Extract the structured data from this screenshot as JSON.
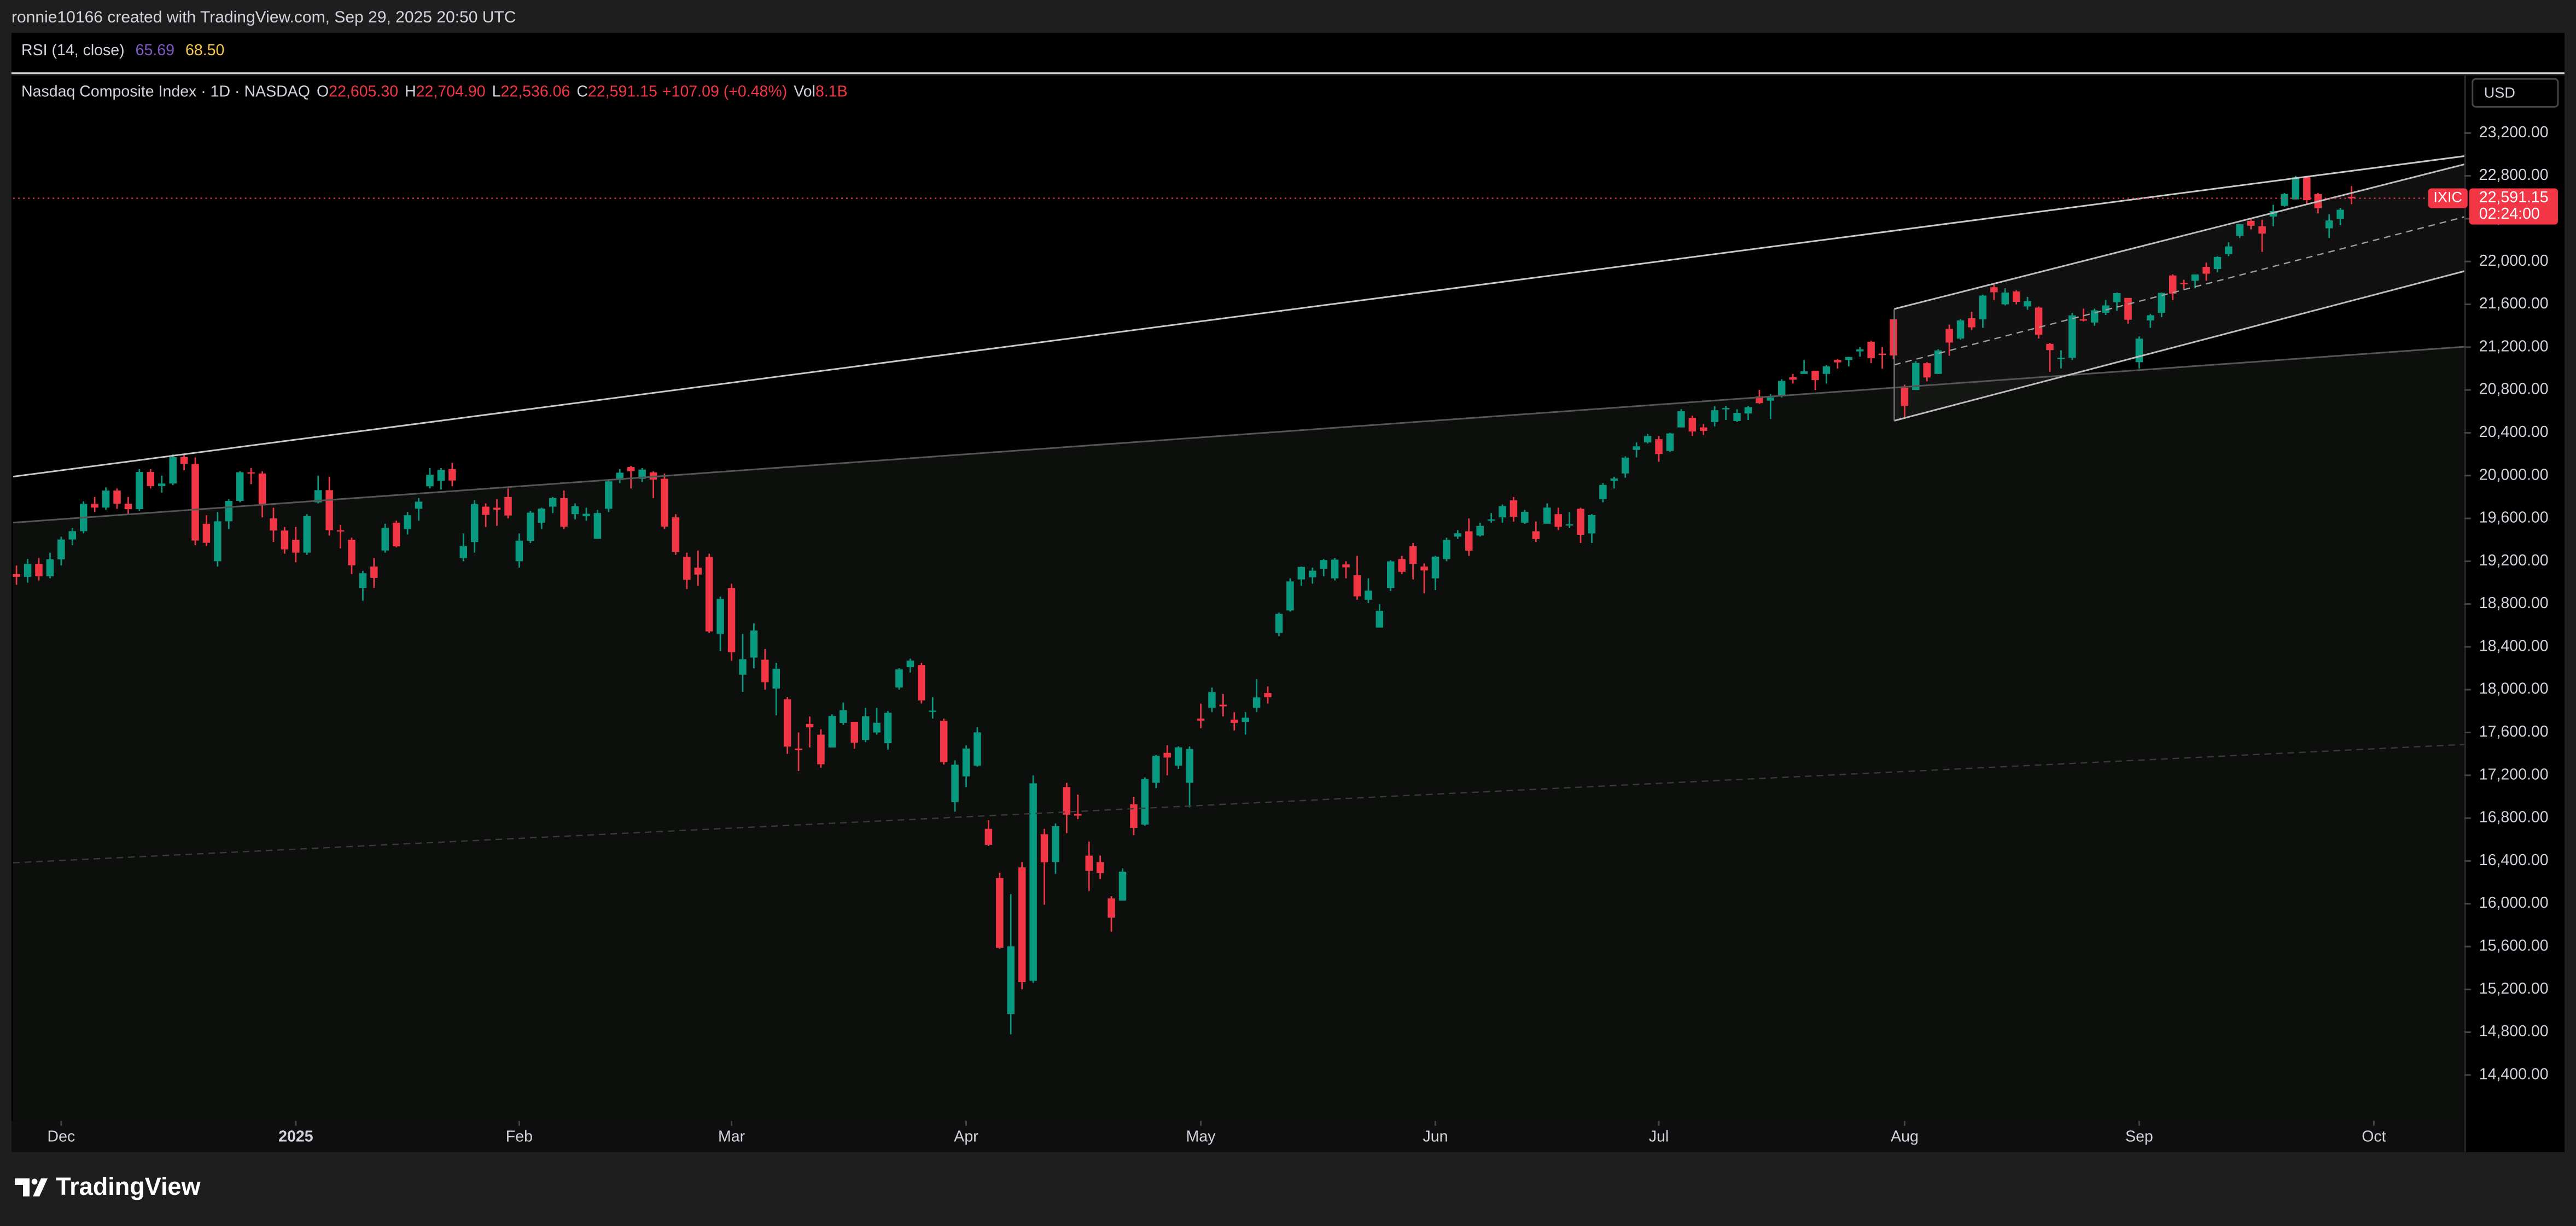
{
  "header": {
    "text": "ronnie10166 created with TradingView.com, Sep 29, 2025 20:50 UTC"
  },
  "rsi": {
    "title": "RSI (14, close)",
    "labels": [
      "65.69",
      "68.50"
    ]
  },
  "footer": {
    "brand": "TradingView"
  },
  "chart_data": {
    "type": "candlestick",
    "legend": {
      "title": "Nasdaq Composite Index · 1D · NASDAQ",
      "fields": [
        {
          "key": "O",
          "label": "22,605.30"
        },
        {
          "key": "H",
          "label": "22,704.90"
        },
        {
          "key": "L",
          "label": "22,536.06"
        },
        {
          "key": "C",
          "label": "22,591.15"
        }
      ],
      "change": "+107.09 (+0.48%)",
      "volume_key": "Vol",
      "volume": "8.1B"
    },
    "currency": "USD",
    "symbol": "IXIC",
    "last_price": {
      "value": 22591.15,
      "label": "22,591.15"
    },
    "countdown": "02:24:00",
    "up_color": "#089981",
    "down_color": "#f23645",
    "xlim": [
      -0.3,
      218.8
    ],
    "ylim": [
      13972,
      23737
    ],
    "xticks": [
      {
        "value": 4,
        "label": "Dec"
      },
      {
        "value": 25,
        "label": "2025"
      },
      {
        "value": 45,
        "label": "Feb"
      },
      {
        "value": 64,
        "label": "Mar"
      },
      {
        "value": 85,
        "label": "Apr"
      },
      {
        "value": 106,
        "label": "May"
      },
      {
        "value": 127,
        "label": "Jun"
      },
      {
        "value": 147,
        "label": "Jul"
      },
      {
        "value": 169,
        "label": "Aug"
      },
      {
        "value": 190,
        "label": "Sep"
      },
      {
        "value": 211,
        "label": "Oct"
      }
    ],
    "yticks": [
      {
        "value": 14400,
        "label": "14,400.00"
      },
      {
        "value": 14800,
        "label": "14,800.00"
      },
      {
        "value": 15200,
        "label": "15,200.00"
      },
      {
        "value": 15600,
        "label": "15,600.00"
      },
      {
        "value": 16000,
        "label": "16,000.00"
      },
      {
        "value": 16400,
        "label": "16,400.00"
      },
      {
        "value": 16800,
        "label": "16,800.00"
      },
      {
        "value": 17200,
        "label": "17,200.00"
      },
      {
        "value": 17600,
        "label": "17,600.00"
      },
      {
        "value": 18000,
        "label": "18,000.00"
      },
      {
        "value": 18400,
        "label": "18,400.00"
      },
      {
        "value": 18800,
        "label": "18,800.00"
      },
      {
        "value": 19200,
        "label": "19,200.00"
      },
      {
        "value": 19600,
        "label": "19,600.00"
      },
      {
        "value": 20000,
        "label": "20,000.00"
      },
      {
        "value": 20400,
        "label": "20,400.00"
      },
      {
        "value": 20800,
        "label": "20,800.00"
      },
      {
        "value": 21200,
        "label": "21,200.00"
      },
      {
        "value": 21600,
        "label": "21,600.00"
      },
      {
        "value": 22000,
        "label": "22,000.00"
      },
      {
        "value": 22400,
        "label": "22,400.00"
      },
      {
        "value": 22800,
        "label": "22,800.00"
      },
      {
        "value": 23200,
        "label": "23,200.00"
      }
    ],
    "candles": [
      [
        19080,
        19160,
        18980,
        19054
      ],
      [
        19054,
        19220,
        19000,
        19175
      ],
      [
        19175,
        19230,
        19020,
        19060
      ],
      [
        19060,
        19280,
        19040,
        19218
      ],
      [
        19218,
        19430,
        19160,
        19403
      ],
      [
        19403,
        19510,
        19350,
        19481
      ],
      [
        19481,
        19760,
        19460,
        19735
      ],
      [
        19735,
        19800,
        19660,
        19701
      ],
      [
        19701,
        19890,
        19680,
        19860
      ],
      [
        19860,
        19880,
        19690,
        19737
      ],
      [
        19737,
        19800,
        19640,
        19687
      ],
      [
        19687,
        20060,
        19670,
        20034
      ],
      [
        20034,
        20060,
        19880,
        19902
      ],
      [
        19902,
        20000,
        19840,
        19926
      ],
      [
        19926,
        20200,
        19910,
        20173
      ],
      [
        20173,
        20200,
        20050,
        20109
      ],
      [
        20109,
        20170,
        19350,
        19393
      ],
      [
        19550,
        19630,
        19340,
        19372
      ],
      [
        19200,
        19660,
        19150,
        19573
      ],
      [
        19573,
        19780,
        19500,
        19764
      ],
      [
        19764,
        20040,
        19750,
        20031
      ],
      [
        20031,
        20070,
        19920,
        20020
      ],
      [
        20020,
        20040,
        19610,
        19722
      ],
      [
        19600,
        19700,
        19380,
        19487
      ],
      [
        19487,
        19520,
        19270,
        19311
      ],
      [
        19400,
        19520,
        19190,
        19280
      ],
      [
        19280,
        19640,
        19260,
        19622
      ],
      [
        19750,
        20000,
        19740,
        19864
      ],
      [
        19864,
        19990,
        19440,
        19490
      ],
      [
        19490,
        19540,
        19320,
        19479
      ],
      [
        19400,
        19420,
        19080,
        19162
      ],
      [
        18950,
        19110,
        18830,
        19088
      ],
      [
        19150,
        19230,
        18950,
        19044
      ],
      [
        19300,
        19550,
        19280,
        19511
      ],
      [
        19560,
        19580,
        19330,
        19339
      ],
      [
        19500,
        19660,
        19450,
        19630
      ],
      [
        19690,
        19790,
        19580,
        19757
      ],
      [
        19900,
        20070,
        19880,
        20009
      ],
      [
        19950,
        20070,
        19870,
        20053
      ],
      [
        20060,
        20120,
        19900,
        19954
      ],
      [
        19230,
        19460,
        19200,
        19342
      ],
      [
        19380,
        19770,
        19280,
        19734
      ],
      [
        19710,
        19740,
        19520,
        19633
      ],
      [
        19700,
        19780,
        19530,
        19681
      ],
      [
        19800,
        19880,
        19600,
        19627
      ],
      [
        19200,
        19460,
        19140,
        19392
      ],
      [
        19390,
        19670,
        19370,
        19654
      ],
      [
        19560,
        19700,
        19500,
        19692
      ],
      [
        19710,
        19800,
        19650,
        19791
      ],
      [
        19790,
        19860,
        19500,
        19523
      ],
      [
        19640,
        19740,
        19590,
        19714
      ],
      [
        19620,
        19700,
        19580,
        19643
      ],
      [
        19410,
        19680,
        19410,
        19650
      ],
      [
        19690,
        19960,
        19660,
        19946
      ],
      [
        19960,
        20060,
        19930,
        20027
      ],
      [
        20080,
        20090,
        19880,
        20041
      ],
      [
        19970,
        20070,
        19940,
        20056
      ],
      [
        20030,
        20040,
        19790,
        19962
      ],
      [
        19970,
        20020,
        19500,
        19524
      ],
      [
        19610,
        19640,
        19260,
        19287
      ],
      [
        19240,
        19280,
        18940,
        19026
      ],
      [
        19140,
        19300,
        18970,
        19075
      ],
      [
        19240,
        19270,
        18530,
        18544
      ],
      [
        18520,
        18870,
        18360,
        18847
      ],
      [
        18950,
        18990,
        18270,
        18350
      ],
      [
        18140,
        18520,
        17980,
        18285
      ],
      [
        18300,
        18620,
        18200,
        18553
      ],
      [
        18280,
        18380,
        18000,
        18070
      ],
      [
        18010,
        18250,
        17760,
        18196
      ],
      [
        17910,
        17930,
        17400,
        17468
      ],
      [
        17450,
        17600,
        17240,
        17436
      ],
      [
        17680,
        17750,
        17460,
        17648
      ],
      [
        17580,
        17630,
        17270,
        17303
      ],
      [
        17460,
        17770,
        17460,
        17754
      ],
      [
        17690,
        17880,
        17670,
        17809
      ],
      [
        17700,
        17700,
        17450,
        17504
      ],
      [
        17530,
        17830,
        17510,
        17751
      ],
      [
        17600,
        17830,
        17580,
        17691
      ],
      [
        17500,
        17800,
        17440,
        17784
      ],
      [
        18020,
        18200,
        18000,
        18189
      ],
      [
        18210,
        18290,
        18160,
        18272
      ],
      [
        18230,
        18250,
        17870,
        17900
      ],
      [
        17800,
        17930,
        17730,
        17805
      ],
      [
        17710,
        17730,
        17300,
        17323
      ],
      [
        16950,
        17340,
        16860,
        17299
      ],
      [
        17190,
        17480,
        17090,
        17450
      ],
      [
        17290,
        17650,
        17280,
        17601
      ],
      [
        16700,
        16780,
        16540,
        16551
      ],
      [
        16240,
        16290,
        15580,
        15588
      ],
      [
        14970,
        16090,
        14780,
        15603
      ],
      [
        16340,
        16390,
        15200,
        15268
      ],
      [
        15280,
        17200,
        15260,
        17125
      ],
      [
        16650,
        16700,
        15990,
        16387
      ],
      [
        16390,
        16750,
        16280,
        16724
      ],
      [
        17090,
        17130,
        16660,
        16832
      ],
      [
        16840,
        17020,
        16790,
        16823
      ],
      [
        16450,
        16580,
        16120,
        16307
      ],
      [
        16390,
        16450,
        16230,
        16286
      ],
      [
        16050,
        16070,
        15740,
        15870
      ],
      [
        16030,
        16330,
        16030,
        16300
      ],
      [
        16930,
        17000,
        16640,
        16708
      ],
      [
        16740,
        17180,
        16730,
        17166
      ],
      [
        17130,
        17390,
        17080,
        17383
      ],
      [
        17410,
        17480,
        17200,
        17366
      ],
      [
        17290,
        17470,
        17260,
        17461
      ],
      [
        17130,
        17470,
        16900,
        17446
      ],
      [
        17730,
        17870,
        17640,
        17711
      ],
      [
        17830,
        18020,
        17790,
        17978
      ],
      [
        17860,
        17960,
        17750,
        17844
      ],
      [
        17720,
        17790,
        17620,
        17690
      ],
      [
        17700,
        17790,
        17580,
        17738
      ],
      [
        17830,
        18100,
        17790,
        17928
      ],
      [
        17970,
        18030,
        17870,
        17929
      ],
      [
        18530,
        18720,
        18500,
        18708
      ],
      [
        18740,
        19040,
        18730,
        19011
      ],
      [
        19030,
        19150,
        18970,
        19147
      ],
      [
        19050,
        19140,
        18990,
        19112
      ],
      [
        19130,
        19220,
        19060,
        19211
      ],
      [
        19040,
        19230,
        19020,
        19215
      ],
      [
        19170,
        19200,
        19040,
        19143
      ],
      [
        19070,
        19250,
        18840,
        18872
      ],
      [
        18840,
        19040,
        18810,
        18926
      ],
      [
        18580,
        18800,
        18580,
        18737
      ],
      [
        18950,
        19210,
        18920,
        19199
      ],
      [
        19220,
        19250,
        19080,
        19101
      ],
      [
        19340,
        19370,
        19030,
        19175
      ],
      [
        19150,
        19180,
        18900,
        19114
      ],
      [
        19040,
        19250,
        18930,
        19243
      ],
      [
        19220,
        19420,
        19200,
        19399
      ],
      [
        19430,
        19490,
        19410,
        19461
      ],
      [
        19480,
        19600,
        19250,
        19299
      ],
      [
        19440,
        19560,
        19430,
        19530
      ],
      [
        19580,
        19650,
        19560,
        19591
      ],
      [
        19610,
        19730,
        19560,
        19715
      ],
      [
        19770,
        19800,
        19570,
        19615
      ],
      [
        19560,
        19680,
        19550,
        19662
      ],
      [
        19480,
        19570,
        19380,
        19407
      ],
      [
        19550,
        19740,
        19550,
        19701
      ],
      [
        19640,
        19700,
        19490,
        19521
      ],
      [
        19540,
        19660,
        19510,
        19546
      ],
      [
        19690,
        19700,
        19370,
        19447
      ],
      [
        19460,
        19640,
        19370,
        19631
      ],
      [
        19780,
        19930,
        19750,
        19913
      ],
      [
        19950,
        19990,
        19880,
        19973
      ],
      [
        20020,
        20180,
        19980,
        20168
      ],
      [
        20240,
        20310,
        20170,
        20273
      ],
      [
        20310,
        20390,
        20300,
        20370
      ],
      [
        20340,
        20370,
        20130,
        20202
      ],
      [
        20230,
        20400,
        20220,
        20394
      ],
      [
        20450,
        20620,
        20450,
        20601
      ],
      [
        20540,
        20560,
        20370,
        20412
      ],
      [
        20450,
        20480,
        20380,
        20418
      ],
      [
        20500,
        20650,
        20460,
        20611
      ],
      [
        20620,
        20650,
        20520,
        20631
      ],
      [
        20510,
        20620,
        20500,
        20586
      ],
      [
        20580,
        20650,
        20520,
        20640
      ],
      [
        20740,
        20800,
        20670,
        20677
      ],
      [
        20700,
        20760,
        20530,
        20730
      ],
      [
        20750,
        20900,
        20730,
        20885
      ],
      [
        20920,
        20950,
        20860,
        20896
      ],
      [
        20950,
        21080,
        20950,
        20974
      ],
      [
        20980,
        20980,
        20800,
        20893
      ],
      [
        20950,
        21030,
        20860,
        21020
      ],
      [
        21080,
        21090,
        21000,
        21058
      ],
      [
        21080,
        21110,
        21020,
        21108
      ],
      [
        21160,
        21200,
        21110,
        21179
      ],
      [
        21250,
        21260,
        21050,
        21098
      ],
      [
        21140,
        21200,
        21000,
        21130
      ],
      [
        21460,
        21460,
        21090,
        21122
      ],
      [
        20820,
        20850,
        20550,
        20650
      ],
      [
        20800,
        21070,
        20800,
        21053
      ],
      [
        21050,
        21060,
        20880,
        20917
      ],
      [
        20950,
        21180,
        20950,
        21169
      ],
      [
        21370,
        21410,
        21120,
        21243
      ],
      [
        21280,
        21460,
        21270,
        21450
      ],
      [
        21470,
        21530,
        21360,
        21385
      ],
      [
        21460,
        21690,
        21380,
        21682
      ],
      [
        21760,
        21800,
        21640,
        21713
      ],
      [
        21600,
        21750,
        21590,
        21710
      ],
      [
        21720,
        21730,
        21600,
        21623
      ],
      [
        21580,
        21670,
        21550,
        21630
      ],
      [
        21570,
        21580,
        21280,
        21315
      ],
      [
        21230,
        21240,
        20970,
        21172
      ],
      [
        21100,
        21170,
        21000,
        21100
      ],
      [
        21100,
        21520,
        21080,
        21497
      ],
      [
        21460,
        21560,
        21440,
        21449
      ],
      [
        21430,
        21560,
        21400,
        21544
      ],
      [
        21520,
        21640,
        21500,
        21590
      ],
      [
        21620,
        21710,
        21540,
        21705
      ],
      [
        21660,
        21660,
        21420,
        21456
      ],
      [
        21060,
        21300,
        21000,
        21280
      ],
      [
        21450,
        21510,
        21380,
        21498
      ],
      [
        21520,
        21710,
        21480,
        21707
      ],
      [
        21870,
        21880,
        21640,
        21700
      ],
      [
        21800,
        21830,
        21740,
        21799
      ],
      [
        21820,
        21880,
        21750,
        21879
      ],
      [
        21950,
        21990,
        21820,
        21886
      ],
      [
        21930,
        22050,
        21900,
        22043
      ],
      [
        22070,
        22180,
        22050,
        22141
      ],
      [
        22240,
        22350,
        22220,
        22349
      ],
      [
        22380,
        22400,
        22300,
        22334
      ],
      [
        22330,
        22390,
        22090,
        22261
      ],
      [
        22420,
        22530,
        22330,
        22471
      ],
      [
        22520,
        22640,
        22510,
        22631
      ],
      [
        22580,
        22800,
        22580,
        22789
      ],
      [
        22790,
        22800,
        22530,
        22573
      ],
      [
        22630,
        22640,
        22450,
        22498
      ],
      [
        22310,
        22440,
        22220,
        22384
      ],
      [
        22400,
        22500,
        22340,
        22484
      ],
      [
        22605.3,
        22704.9,
        22536.06,
        22591.15
      ]
    ]
  }
}
